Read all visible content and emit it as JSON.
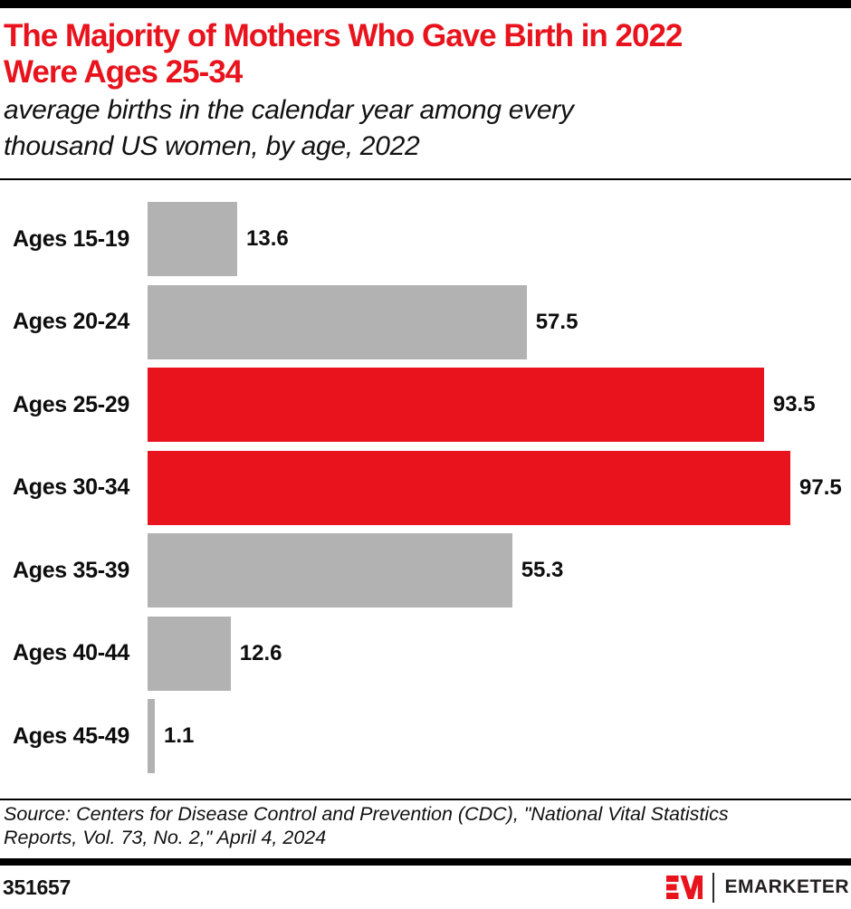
{
  "page": {
    "title_line1": "The Majority of Mothers Who Gave Birth in 2022",
    "title_line2": "Were Ages 25-34",
    "subtitle_line1": "average births in the calendar year among every",
    "subtitle_line2": "thousand US women, by age, 2022",
    "source_line1": "Source: Centers for Disease Control and Prevention (CDC), \"National Vital Statistics",
    "source_line2": "Reports, Vol. 73, No. 2,\" April 4, 2024",
    "chart_id": "351657",
    "brand": "EMARKETER"
  },
  "colors": {
    "accent_red": "#e8131c",
    "bar_gray": "#b2b2b2",
    "text_black": "#0d0d0d",
    "brand_black": "#231f20"
  },
  "chart_data": {
    "type": "bar",
    "orientation": "horizontal",
    "title": "The Majority of Mothers Who Gave Birth in 2022 Were Ages 25-34",
    "subtitle": "average births in the calendar year among every thousand US women, by age, 2022",
    "categories": [
      "Ages 15-19",
      "Ages 20-24",
      "Ages 25-29",
      "Ages 30-34",
      "Ages 35-39",
      "Ages 40-44",
      "Ages 45-49"
    ],
    "values": [
      13.6,
      57.5,
      93.5,
      97.5,
      55.3,
      12.6,
      1.1
    ],
    "bar_colors": [
      "#b2b2b2",
      "#b2b2b2",
      "#e8131c",
      "#e8131c",
      "#b2b2b2",
      "#b2b2b2",
      "#b2b2b2"
    ],
    "xlim": [
      0,
      100
    ],
    "value_labels": true,
    "grid": false,
    "legend": false
  }
}
